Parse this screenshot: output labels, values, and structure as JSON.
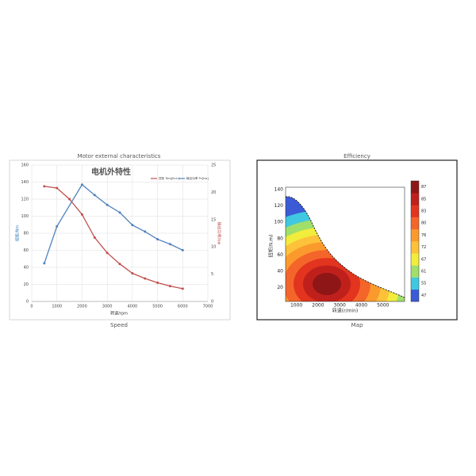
{
  "chart_data": [
    {
      "type": "line",
      "title": "Motor external characteristics",
      "inner_title": "电机外特性",
      "caption": "Speed",
      "xlabel": "转速/rpm",
      "ylabel": "扭矩/Nm",
      "y2label": "输出功率/kw",
      "xlim": [
        0,
        7000
      ],
      "xticks": [
        0,
        1000,
        2000,
        3000,
        4000,
        5000,
        6000,
        7000
      ],
      "ylim": [
        0,
        160
      ],
      "yticks": [
        0,
        20,
        40,
        60,
        80,
        100,
        120,
        140,
        160
      ],
      "y2lim": [
        0,
        25
      ],
      "y2ticks": [
        0,
        5,
        10,
        15,
        20,
        25
      ],
      "grid": true,
      "series": [
        {
          "name": "扭矩 Torq[N.m]",
          "color": "#c0504d",
          "x": [
            500,
            1000,
            1500,
            2000,
            2500,
            3000,
            3500,
            4000,
            4500,
            5000,
            5500,
            6000
          ],
          "values": [
            135,
            133,
            120,
            102,
            75,
            57,
            44,
            33,
            27,
            22,
            18,
            15
          ]
        },
        {
          "name": "输出功率 Pn[kw]",
          "color": "#4f81bd",
          "axis": "y2",
          "x": [
            500,
            1000,
            2000,
            2500,
            3000,
            3500,
            4000,
            4500,
            5000,
            5500,
            6000
          ],
          "values": [
            7,
            13.75,
            21.4,
            19.5,
            17.7,
            16.3,
            14,
            12.8,
            11.4,
            10.5,
            9.4
          ]
        }
      ]
    },
    {
      "type": "contour",
      "title": "Efficiency",
      "caption": "Map",
      "xlabel": "转速(r/min)",
      "ylabel": "扭矩(N.m)",
      "xlim": [
        500,
        6000
      ],
      "xticks": [
        1000,
        2000,
        3000,
        4000,
        5000
      ],
      "ylim": [
        3,
        143
      ],
      "yticks": [
        20,
        40,
        60,
        80,
        100,
        120,
        140
      ],
      "levels": [
        47,
        55,
        61,
        67,
        72,
        76,
        80,
        83,
        85,
        87
      ],
      "colors": [
        "#3b5bd6",
        "#3fc8e0",
        "#9fdf6a",
        "#f2ec3c",
        "#fdc13a",
        "#fb9a2c",
        "#f4652a",
        "#e2341f",
        "#c0201c",
        "#8e1616"
      ]
    }
  ]
}
